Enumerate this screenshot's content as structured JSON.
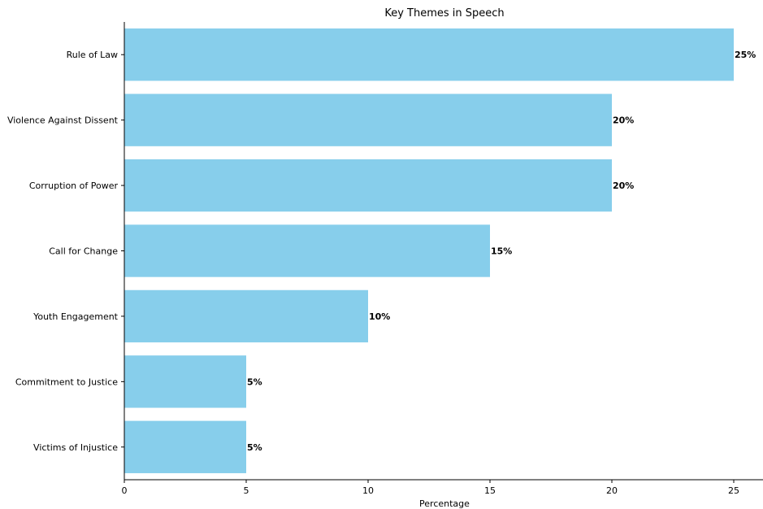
{
  "chart_data": {
    "type": "bar",
    "orientation": "horizontal",
    "title": "Key Themes in Speech",
    "xlabel": "Percentage",
    "ylabel": "",
    "categories": [
      "Rule of Law",
      "Violence Against Dissent",
      "Corruption of Power",
      "Call for Change",
      "Youth Engagement",
      "Commitment to Justice",
      "Victims of Injustice"
    ],
    "values": [
      25,
      20,
      20,
      15,
      10,
      5,
      5
    ],
    "value_labels": [
      "25%",
      "20%",
      "20%",
      "15%",
      "10%",
      "5%",
      "5%"
    ],
    "xlim": [
      0,
      26.2
    ],
    "xticks": [
      0,
      5,
      10,
      15,
      20,
      25
    ],
    "bar_color": "#87CEEB",
    "grid": false,
    "legend": "none"
  }
}
